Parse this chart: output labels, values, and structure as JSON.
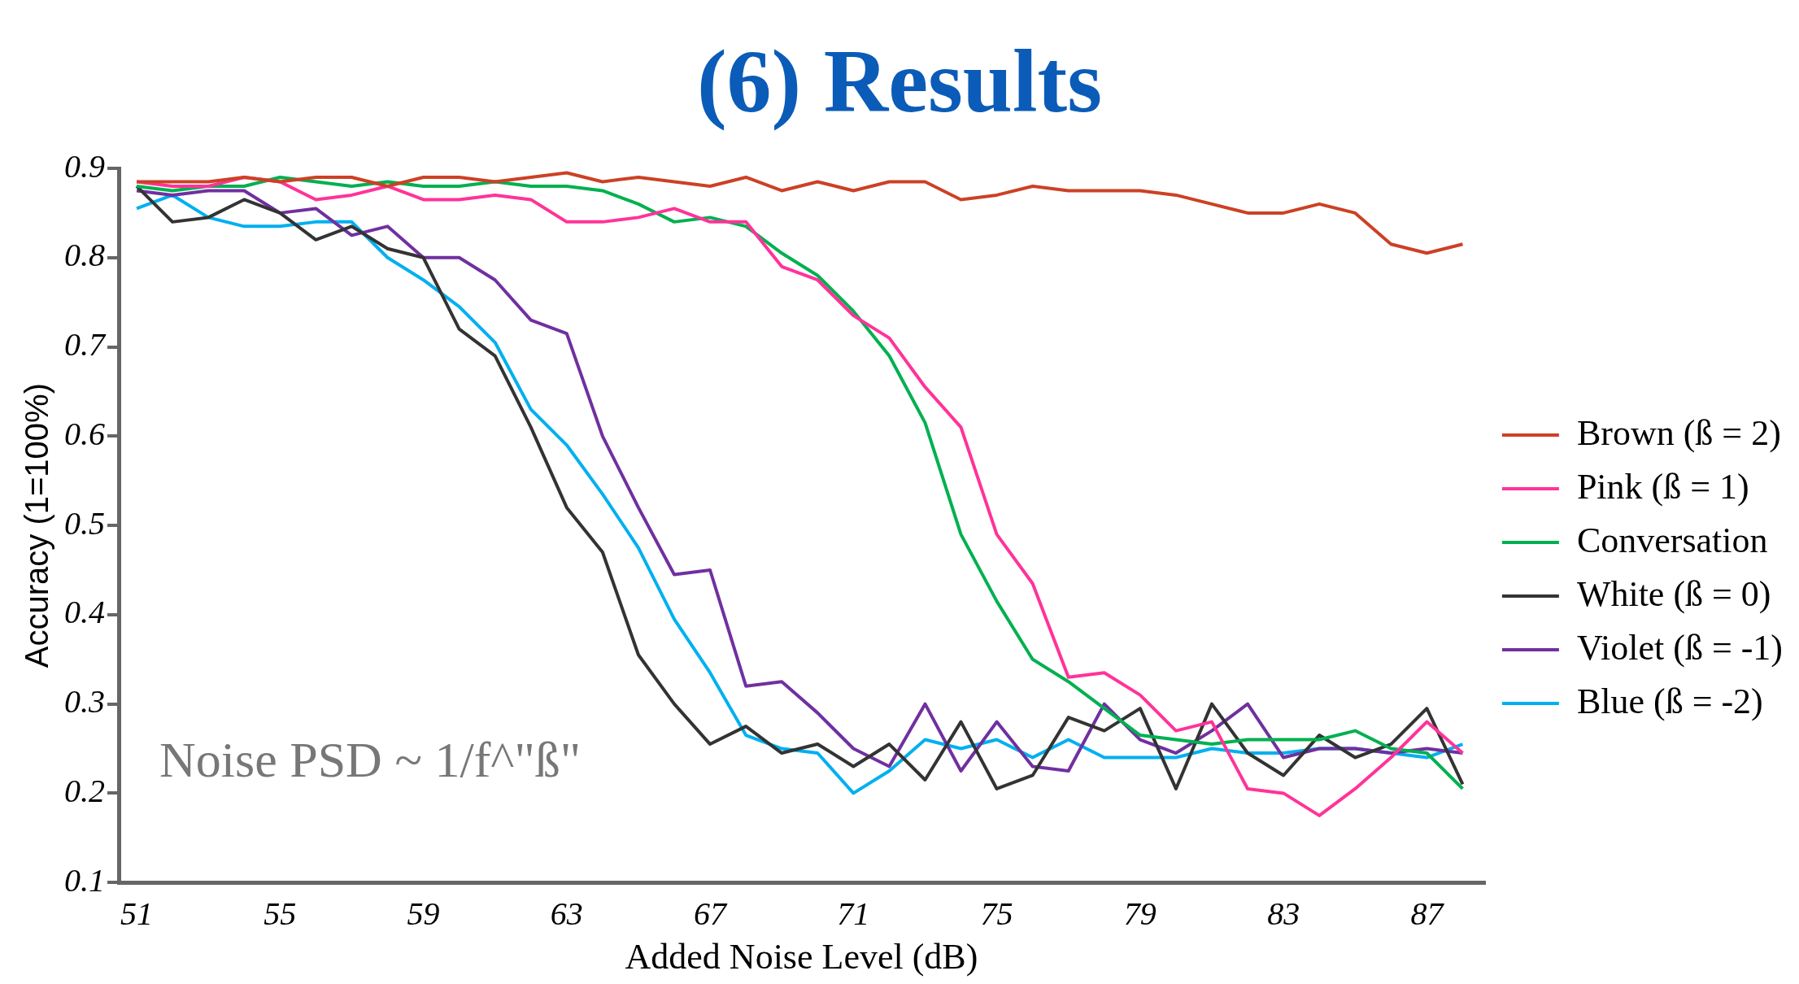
{
  "chart_data": {
    "type": "line",
    "title": "(6) Results",
    "xlabel": "Added Noise Level (dB)",
    "ylabel": "Accuracy (1=100%)",
    "x": [
      51,
      52,
      53,
      54,
      55,
      56,
      57,
      58,
      59,
      60,
      61,
      62,
      63,
      64,
      65,
      66,
      67,
      68,
      69,
      70,
      71,
      72,
      73,
      74,
      75,
      76,
      77,
      78,
      79,
      80,
      81,
      82,
      83,
      84,
      85,
      86,
      87,
      88
    ],
    "xlim": [
      50.5,
      88.6
    ],
    "xticks": [
      51,
      55,
      59,
      63,
      67,
      71,
      75,
      79,
      83,
      87
    ],
    "ylim": [
      0.1,
      0.9
    ],
    "yticks": [
      0.1,
      0.2,
      0.3,
      0.4,
      0.5,
      0.6,
      0.7,
      0.8,
      0.9
    ],
    "grid": false,
    "legend": "right",
    "marker": "none",
    "line_style": "solid",
    "annotations": [
      "Noise PSD ~ 1/f^\"ß\""
    ],
    "series": [
      {
        "name": "Brown (ß = 2)",
        "color": "#cc4125",
        "values": [
          0.885,
          0.885,
          0.885,
          0.89,
          0.885,
          0.89,
          0.89,
          0.88,
          0.89,
          0.89,
          0.885,
          0.89,
          0.895,
          0.885,
          0.89,
          0.885,
          0.88,
          0.89,
          0.875,
          0.885,
          0.875,
          0.885,
          0.885,
          0.865,
          0.87,
          0.88,
          0.875,
          0.875,
          0.875,
          0.87,
          0.86,
          0.85,
          0.85,
          0.86,
          0.85,
          0.815,
          0.805,
          0.815
        ]
      },
      {
        "name": "Pink (ß = 1)",
        "color": "#ff3399",
        "values": [
          0.885,
          0.88,
          0.88,
          0.89,
          0.885,
          0.865,
          0.87,
          0.88,
          0.865,
          0.865,
          0.87,
          0.865,
          0.84,
          0.84,
          0.845,
          0.855,
          0.84,
          0.84,
          0.79,
          0.775,
          0.735,
          0.71,
          0.655,
          0.61,
          0.49,
          0.435,
          0.33,
          0.335,
          0.31,
          0.27,
          0.28,
          0.205,
          0.2,
          0.175,
          0.205,
          0.24,
          0.28,
          0.245
        ]
      },
      {
        "name": "Conversation",
        "color": "#00b050",
        "values": [
          0.88,
          0.875,
          0.88,
          0.88,
          0.89,
          0.885,
          0.88,
          0.885,
          0.88,
          0.88,
          0.885,
          0.88,
          0.88,
          0.875,
          0.86,
          0.84,
          0.845,
          0.835,
          0.805,
          0.78,
          0.74,
          0.69,
          0.615,
          0.49,
          0.415,
          0.35,
          0.325,
          0.295,
          0.265,
          0.26,
          0.255,
          0.26,
          0.26,
          0.26,
          0.27,
          0.25,
          0.245,
          0.205
        ]
      },
      {
        "name": "White (ß = 0)",
        "color": "#333333",
        "values": [
          0.88,
          0.84,
          0.845,
          0.865,
          0.85,
          0.82,
          0.835,
          0.81,
          0.8,
          0.72,
          0.69,
          0.61,
          0.52,
          0.47,
          0.355,
          0.3,
          0.255,
          0.275,
          0.245,
          0.255,
          0.23,
          0.255,
          0.215,
          0.28,
          0.205,
          0.22,
          0.285,
          0.27,
          0.295,
          0.205,
          0.3,
          0.245,
          0.22,
          0.265,
          0.24,
          0.255,
          0.295,
          0.21
        ]
      },
      {
        "name": "Violet (ß = -1)",
        "color": "#7030a0",
        "values": [
          0.875,
          0.87,
          0.875,
          0.875,
          0.85,
          0.855,
          0.825,
          0.835,
          0.8,
          0.8,
          0.775,
          0.73,
          0.715,
          0.6,
          0.52,
          0.445,
          0.45,
          0.32,
          0.325,
          0.29,
          0.25,
          0.23,
          0.3,
          0.225,
          0.28,
          0.23,
          0.225,
          0.3,
          0.26,
          0.245,
          0.27,
          0.3,
          0.24,
          0.25,
          0.25,
          0.245,
          0.25,
          0.245
        ]
      },
      {
        "name": "Blue (ß = -2)",
        "color": "#00b0f0",
        "values": [
          0.855,
          0.87,
          0.845,
          0.835,
          0.835,
          0.84,
          0.84,
          0.8,
          0.775,
          0.745,
          0.705,
          0.63,
          0.59,
          0.535,
          0.475,
          0.395,
          0.335,
          0.265,
          0.25,
          0.245,
          0.2,
          0.225,
          0.26,
          0.25,
          0.26,
          0.24,
          0.26,
          0.24,
          0.24,
          0.24,
          0.25,
          0.245,
          0.245,
          0.25,
          0.25,
          0.245,
          0.24,
          0.255
        ]
      }
    ]
  }
}
